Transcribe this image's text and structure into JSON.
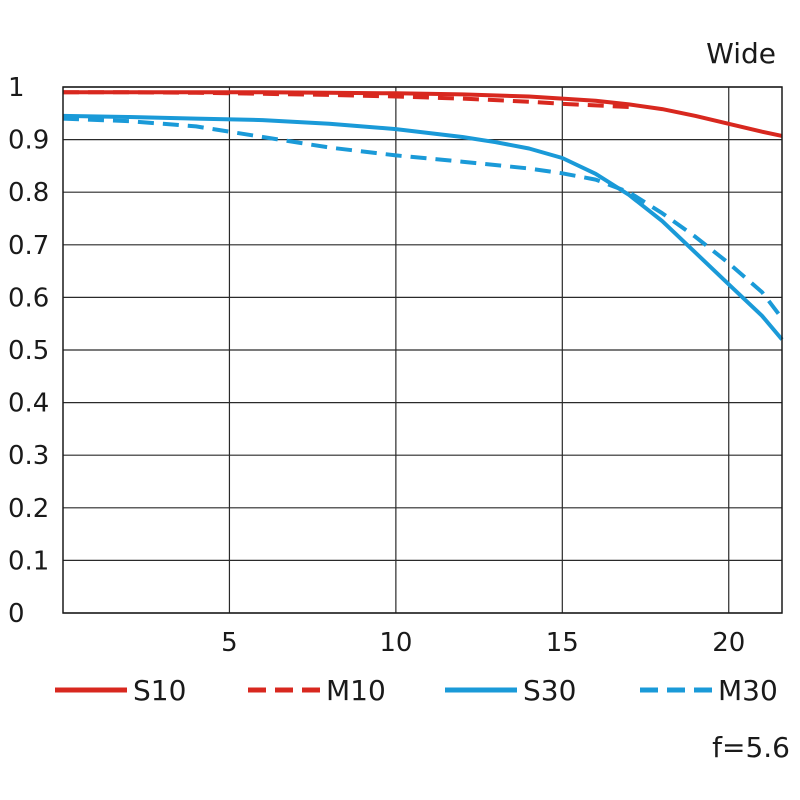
{
  "chart_data": {
    "type": "line",
    "title": "Wide",
    "note": "f=5.6",
    "xlabel": "",
    "ylabel": "",
    "xlim": [
      0,
      21.6
    ],
    "ylim": [
      0,
      1
    ],
    "grid": true,
    "legend_position": "bottom",
    "x_ticks": [
      5,
      10,
      15,
      20
    ],
    "y_ticks": [
      0,
      0.1,
      0.2,
      0.3,
      0.4,
      0.5,
      0.6,
      0.7,
      0.8,
      0.9,
      1
    ],
    "series": [
      {
        "name": "S10",
        "color": "#d8281f",
        "dashed": false,
        "x": [
          0,
          2,
          4,
          6,
          8,
          10,
          12,
          14,
          15,
          16,
          17,
          18,
          19,
          20,
          21,
          21.6
        ],
        "y": [
          0.99,
          0.99,
          0.99,
          0.99,
          0.989,
          0.988,
          0.986,
          0.982,
          0.978,
          0.974,
          0.967,
          0.958,
          0.945,
          0.93,
          0.915,
          0.907
        ]
      },
      {
        "name": "M10",
        "color": "#d8281f",
        "dashed": true,
        "x": [
          0,
          2,
          4,
          6,
          8,
          10,
          12,
          14,
          15,
          16,
          17
        ],
        "y": [
          0.99,
          0.99,
          0.989,
          0.987,
          0.985,
          0.982,
          0.978,
          0.972,
          0.968,
          0.965,
          0.962
        ]
      },
      {
        "name": "S30",
        "color": "#1a9ad8",
        "dashed": false,
        "x": [
          0,
          2,
          4,
          6,
          8,
          10,
          12,
          13,
          14,
          15,
          16,
          17,
          18,
          19,
          20,
          21,
          21.6
        ],
        "y": [
          0.945,
          0.943,
          0.94,
          0.937,
          0.93,
          0.92,
          0.905,
          0.895,
          0.883,
          0.865,
          0.835,
          0.795,
          0.745,
          0.685,
          0.625,
          0.565,
          0.52
        ]
      },
      {
        "name": "M30",
        "color": "#1a9ad8",
        "dashed": true,
        "x": [
          0,
          2,
          4,
          6,
          8,
          10,
          12,
          14,
          15,
          16,
          17,
          18,
          19,
          20,
          21,
          21.6
        ],
        "y": [
          0.94,
          0.935,
          0.925,
          0.905,
          0.885,
          0.87,
          0.858,
          0.845,
          0.836,
          0.824,
          0.8,
          0.76,
          0.715,
          0.665,
          0.61,
          0.56
        ]
      }
    ]
  }
}
